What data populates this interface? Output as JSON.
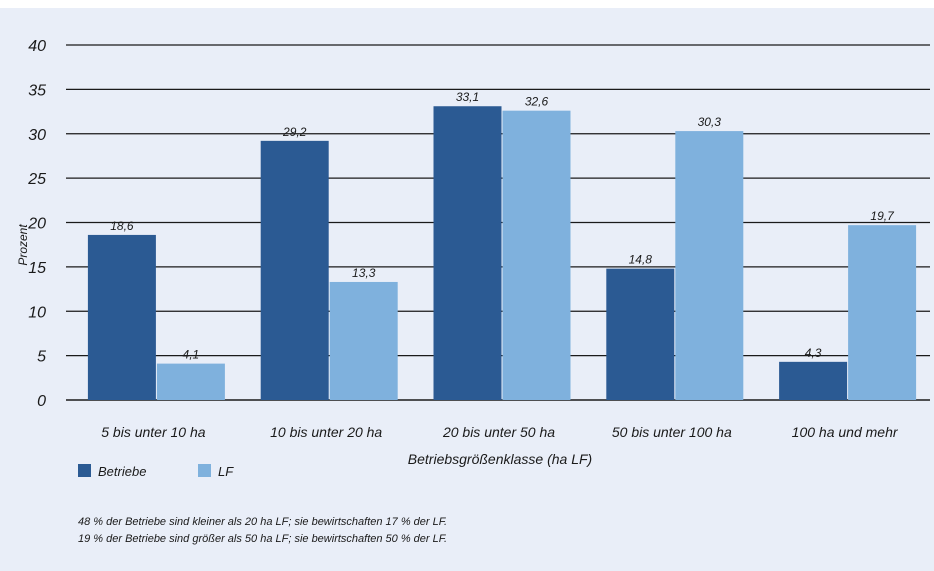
{
  "chart_data": {
    "type": "bar",
    "ylabel": "Prozent",
    "xlabel": "Betriebsgrößenklasse (ha LF)",
    "ylim": [
      0,
      40
    ],
    "yticks": [
      0,
      5,
      10,
      15,
      20,
      25,
      30,
      35,
      40
    ],
    "categories": [
      "5 bis unter 10 ha",
      "10 bis unter 20 ha",
      "20 bis unter 50 ha",
      "50 bis unter 100 ha",
      "100 ha und mehr"
    ],
    "series": [
      {
        "name": "Betriebe",
        "color": "#2b5a93",
        "values": [
          18.6,
          29.2,
          33.1,
          14.8,
          4.3
        ],
        "labels": [
          "18,6",
          "29,2",
          "33,1",
          "14,8",
          "4,3"
        ]
      },
      {
        "name": "LF",
        "color": "#7fb1dd",
        "values": [
          4.1,
          13.3,
          32.6,
          30.3,
          19.7
        ],
        "labels": [
          "4,1",
          "13,3",
          "32,6",
          "30,3",
          "19,7"
        ]
      }
    ],
    "grid": true,
    "legend": "bottom-left"
  },
  "notes": [
    "48 % der Betriebe sind kleiner als 20 ha LF; sie bewirtschaften 17 % der LF.",
    "19 % der Betriebe sind größer als 50 ha LF; sie bewirtschaften 50 % der LF."
  ]
}
